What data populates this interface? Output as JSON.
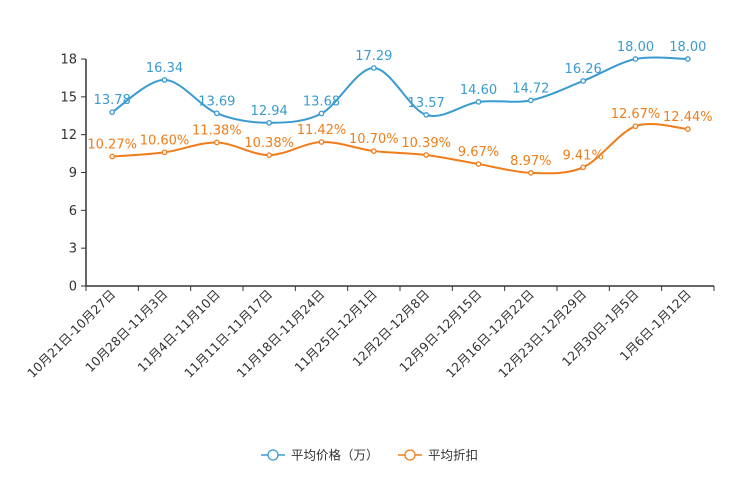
{
  "chart_data": {
    "type": "line",
    "title": "",
    "xlabel": "",
    "ylabel": "",
    "ylim": [
      0,
      18
    ],
    "yticks": [
      0,
      3,
      6,
      9,
      12,
      15,
      18
    ],
    "grid": false,
    "legend_position": "bottom-center",
    "categories": [
      "10月21日-10月27日",
      "10月28日-11月3日",
      "11月4日-11月10日",
      "11月11日-11月17日",
      "11月18日-11月24日",
      "11月25日-12月1日",
      "12月2日-12月8日",
      "12月9日-12月15日",
      "12月16日-12月22日",
      "12月23日-12月29日",
      "12月30日-1月5日",
      "1月6日-1月12日"
    ],
    "series": [
      {
        "name": "平均价格（万）",
        "color": "#3a9bd0",
        "values": [
          13.78,
          16.34,
          13.69,
          12.94,
          13.68,
          17.29,
          13.57,
          14.6,
          14.72,
          16.26,
          18.0,
          18.0
        ],
        "labels": [
          "13.78",
          "16.34",
          "13.69",
          "12.94",
          "13.68",
          "17.29",
          "13.57",
          "14.60",
          "14.72",
          "16.26",
          "18.00",
          "18.00"
        ]
      },
      {
        "name": "平均折扣",
        "color": "#f07d1a",
        "values": [
          10.27,
          10.6,
          11.38,
          10.38,
          11.42,
          10.7,
          10.39,
          9.67,
          8.97,
          9.41,
          12.67,
          12.44
        ],
        "labels": [
          "10.27%",
          "10.60%",
          "11.38%",
          "10.38%",
          "11.42%",
          "10.70%",
          "10.39%",
          "9.67%",
          "8.97%",
          "9.41%",
          "12.67%",
          "12.44%"
        ]
      }
    ]
  }
}
